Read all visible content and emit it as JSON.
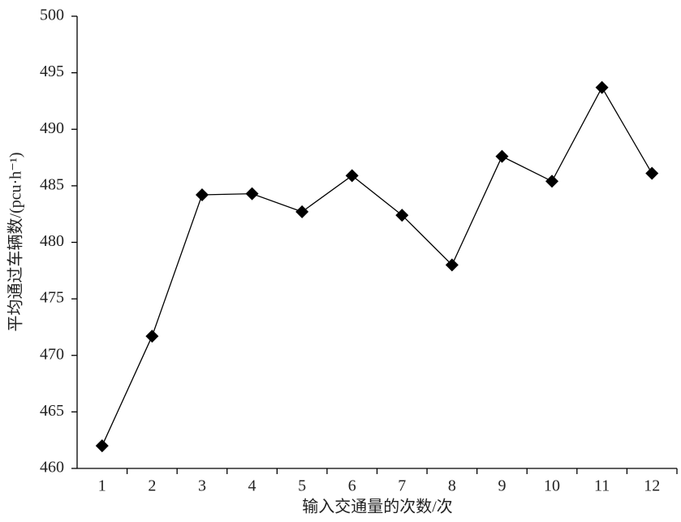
{
  "chart_data": {
    "type": "line",
    "y_label": "平均通过车辆数/(pcu·h⁻¹)",
    "x_label": "输入交通量的次数/次",
    "categories": [
      "1",
      "2",
      "3",
      "4",
      "5",
      "6",
      "7",
      "8",
      "9",
      "10",
      "11",
      "12"
    ],
    "values": [
      462.0,
      471.7,
      484.2,
      484.3,
      482.7,
      485.9,
      482.4,
      478.0,
      487.6,
      485.4,
      493.7,
      486.1
    ],
    "color": "#000000",
    "ylim": [
      460,
      500
    ],
    "yticks": [
      460,
      465,
      470,
      475,
      480,
      485,
      490,
      495,
      500
    ]
  }
}
